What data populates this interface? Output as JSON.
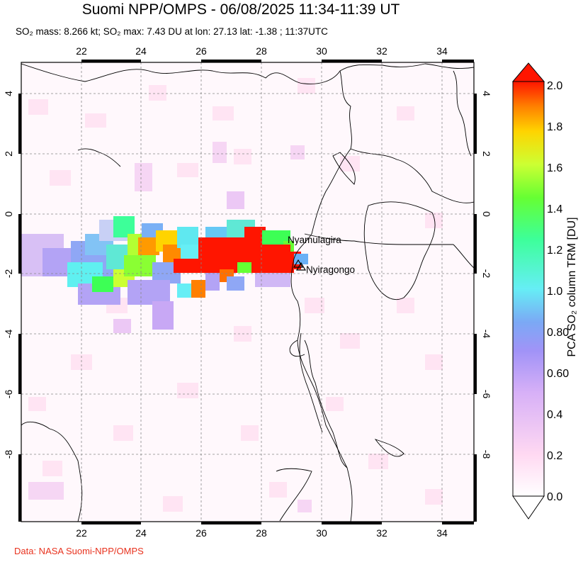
{
  "title": "Suomi NPP/OMPS - 06/08/2025 11:34-11:39 UT",
  "subtitle": "SO₂ mass: 8.266 kt; SO₂ max: 7.43 DU at lon: 27.13 lat: -1.38 ; 11:37UTC",
  "credit": "Data: NASA Suomi-NPP/OMPS",
  "map": {
    "x_ticks": [
      "22",
      "24",
      "26",
      "28",
      "30",
      "32",
      "34"
    ],
    "y_ticks": [
      "4",
      "2",
      "0",
      "-2",
      "-4",
      "-6",
      "-8"
    ],
    "volcanoes": [
      "Nyamulagira",
      "Nyiragongo"
    ]
  },
  "colorbar": {
    "label": "PCA SO₂ column TRM [DU]",
    "ticks": [
      "2.0",
      "1.8",
      "1.6",
      "1.4",
      "1.2",
      "1.0",
      "0.80",
      "0.60",
      "0.4",
      "0.2",
      "0.0"
    ],
    "colors": [
      "#ffffff",
      "#ffd9f2",
      "#e6b3f5",
      "#a98df7",
      "#7aa9f5",
      "#66eef5",
      "#3dff99",
      "#66ff33",
      "#ccff33",
      "#ffd400",
      "#ff8000",
      "#ff1500"
    ]
  }
}
